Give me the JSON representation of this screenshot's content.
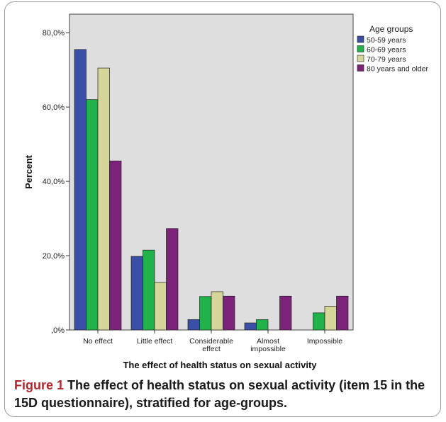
{
  "caption": {
    "figure_label": "Figure 1",
    "text": "The effect of health status on sexual activity (item 15 in the 15D questionnaire), stratified for age-groups."
  },
  "chart_data": {
    "type": "bar",
    "xlabel": "The effect of health status on sexual activity",
    "ylabel": "Percent",
    "ylim": [
      0,
      85
    ],
    "yticks": [
      0,
      20,
      40,
      60,
      80
    ],
    "ytick_labels": [
      ",0%",
      "20,0%",
      "40,0%",
      "60,0%",
      "80,0%"
    ],
    "categories": [
      [
        "No effect"
      ],
      [
        "Little effect"
      ],
      [
        "Considerable",
        "effect"
      ],
      [
        "Almost",
        "impossible"
      ],
      [
        "Impossible"
      ]
    ],
    "legend_title": "Age groups",
    "legend_position": "top-right",
    "series": [
      {
        "name": "50-59 years",
        "color": "#3a4fa5",
        "values": [
          75.5,
          19.8,
          2.8,
          1.9,
          0.0
        ]
      },
      {
        "name": "60-69 years",
        "color": "#21b24b",
        "values": [
          62.0,
          21.5,
          9.0,
          2.8,
          4.6
        ]
      },
      {
        "name": "70-79 years",
        "color": "#d6d59a",
        "values": [
          70.5,
          12.8,
          10.3,
          0.0,
          6.4
        ]
      },
      {
        "name": "80 years and older",
        "color": "#7c2379",
        "values": [
          45.5,
          27.3,
          9.1,
          9.1,
          9.1
        ]
      }
    ],
    "plot_background": "#dedede",
    "grid": false
  }
}
